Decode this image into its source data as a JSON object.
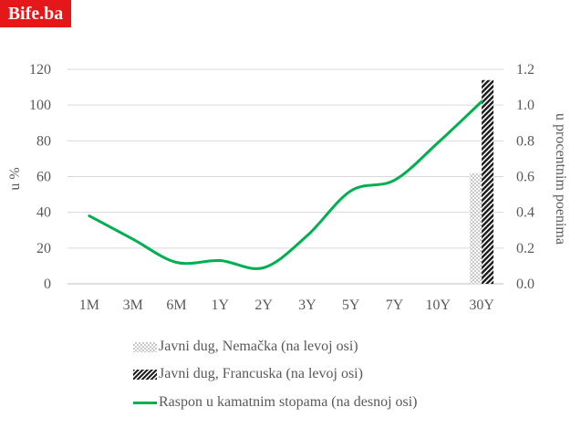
{
  "brand": {
    "logo_text": "Bife.ba"
  },
  "chart_data": {
    "type": "line",
    "categories": [
      "1M",
      "3M",
      "6M",
      "1Y",
      "2Y",
      "3Y",
      "5Y",
      "7Y",
      "10Y",
      "30Y"
    ],
    "y_left": {
      "label": "u %",
      "ticks": [
        "0",
        "20",
        "40",
        "60",
        "80",
        "100",
        "120"
      ],
      "range": [
        0,
        120
      ]
    },
    "y_right": {
      "label": "u procentnim poenima",
      "ticks": [
        "0.0",
        "0.2",
        "0.4",
        "0.6",
        "0.8",
        "1.0",
        "1.2"
      ],
      "range": [
        0,
        1.2
      ]
    },
    "series": [
      {
        "name": "Javni dug, Nemačka (na levoj osi)",
        "kind": "bar",
        "axis": "left",
        "pattern": "checker",
        "values": [
          null,
          null,
          null,
          null,
          null,
          null,
          null,
          null,
          null,
          62
        ]
      },
      {
        "name": "Javni dug, Francuska (na levoj osi)",
        "kind": "bar",
        "axis": "left",
        "pattern": "hatch",
        "values": [
          null,
          null,
          null,
          null,
          null,
          null,
          null,
          null,
          null,
          114
        ]
      },
      {
        "name": "Raspon u kamatnim  stopama (na desnoj osi)",
        "kind": "line",
        "axis": "right",
        "color": "#00b050",
        "values": [
          0.38,
          0.25,
          0.12,
          0.13,
          0.09,
          0.27,
          0.52,
          0.58,
          0.79,
          1.02
        ]
      }
    ],
    "grid": true,
    "legend_position": "bottom"
  }
}
